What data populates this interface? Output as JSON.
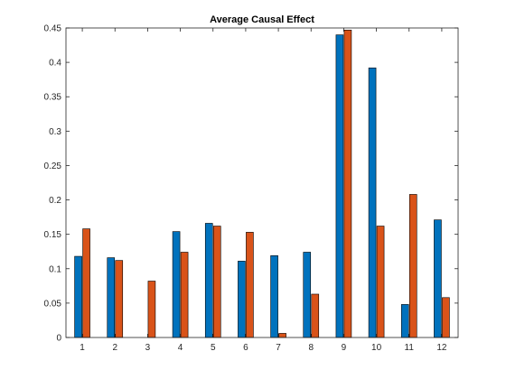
{
  "chart_data": {
    "type": "bar",
    "title": "Average Causal Effect",
    "xlabel": "",
    "ylabel": "",
    "categories": [
      "1",
      "2",
      "3",
      "4",
      "5",
      "6",
      "7",
      "8",
      "9",
      "10",
      "11",
      "12"
    ],
    "series": [
      {
        "color": "#0072BD",
        "values": [
          0.118,
          0.116,
          0.0,
          0.154,
          0.166,
          0.111,
          0.119,
          0.124,
          0.44,
          0.392,
          0.048,
          0.171
        ]
      },
      {
        "color": "#D95319",
        "values": [
          0.158,
          0.112,
          0.082,
          0.124,
          0.162,
          0.153,
          0.006,
          0.063,
          0.447,
          0.162,
          0.208,
          0.058
        ]
      }
    ],
    "ylim": [
      0,
      0.45
    ],
    "yticks": [
      "0",
      "0.05",
      "0.1",
      "0.15",
      "0.2",
      "0.25",
      "0.3",
      "0.35",
      "0.4",
      "0.45"
    ],
    "grid": false,
    "legend": "none"
  }
}
